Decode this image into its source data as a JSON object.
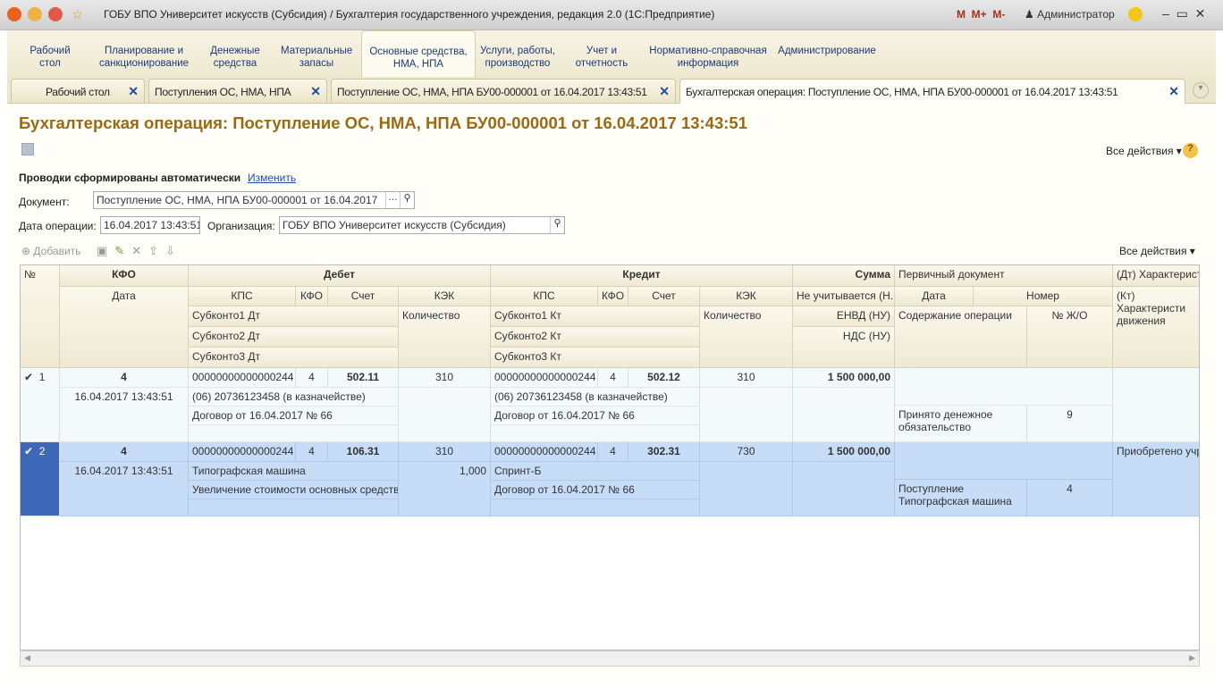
{
  "window": {
    "title": "ГОБУ ВПО Университет искусств (Субсидия) / Бухгалтерия государственного учреждения, редакция 2.0  (1С:Предприятие)",
    "user": "Администратор",
    "memory_buttons": [
      "M",
      "M+",
      "M-"
    ]
  },
  "sections": [
    "Рабочий стол",
    "Планирование и санкционирование",
    "Денежные средства",
    "Материальные запасы",
    "Основные средства, НМА, НПА",
    "Услуги, работы, производство",
    "Учет и отчетность",
    "Нормативно-справочная информация",
    "Администрирование"
  ],
  "active_section": "Основные средства, НМА, НПА",
  "tabs": [
    "Рабочий стол",
    "Поступления ОС, НМА, НПА",
    "Поступление ОС, НМА, НПА БУ00-000001 от 16.04.2017 13:43:51",
    "Бухгалтерская операция: Поступление ОС, НМА, НПА БУ00-000001 от 16.04.2017 13:43:51"
  ],
  "page": {
    "title": "Бухгалтерская операция: Поступление ОС, НМА, НПА БУ00-000001 от 16.04.2017 13:43:51",
    "all_actions": "Все действия ▾",
    "help": "?",
    "auto_label": "Проводки сформированы автоматически",
    "change_link": "Изменить",
    "doc_label": "Документ:",
    "doc_value": "Поступление ОС, НМА, НПА БУ00-000001 от 16.04.2017 1",
    "date_label": "Дата операции:",
    "date_value": "16.04.2017 13:43:51",
    "org_label": "Организация:",
    "org_value": "ГОБУ ВПО Университет искусств (Субсидия)",
    "add": "Добавить",
    "all_actions2": "Все действия ▾"
  },
  "grid": {
    "headers": {
      "num": "№",
      "kfo": "КФО",
      "date": "Дата",
      "debit": "Дебет",
      "credit": "Кредит",
      "sum": "Сумма",
      "kps": "КПС",
      "kfo2": "КФО",
      "account": "Счет",
      "kek": "КЭК",
      "not_counted": "Не учитывается (Н...",
      "envd": "ЕНВД (НУ)",
      "nds": "НДС (НУ)",
      "primary": "Первичный документ",
      "pdate": "Дата",
      "pnum": "Номер",
      "content": "Содержание операции",
      "jo": "№ Ж/О",
      "dt_char": "(Дт) Характеристи",
      "kt_char": "(Кт) Характеристи движения",
      "sub1dt": "Субконто1 Дт",
      "sub2dt": "Субконто2 Дт",
      "sub3dt": "Субконто3 Дт",
      "qty": "Количество",
      "sub1kt": "Субконто1 Кт",
      "sub2kt": "Субконто2 Кт",
      "sub3kt": "Субконто3 Кт",
      "qty2": "Количество"
    },
    "rows": [
      {
        "check": "✔",
        "n": "1",
        "kfo": "4",
        "date": "16.04.2017 13:43:51",
        "dt_kps": "00000000000000244",
        "dt_kfo": "4",
        "dt_acc": "502.11",
        "dt_kek": "310",
        "dt_s1": "(06) 20736123458 (в казначействе)",
        "dt_qty": "",
        "dt_s2": "Договор от 16.04.2017 № 66",
        "kt_kps": "00000000000000244",
        "kt_kfo": "4",
        "kt_acc": "502.12",
        "kt_kek": "310",
        "kt_s1": "(06) 20736123458 (в казначействе)",
        "kt_s2": "Договор от 16.04.2017 № 66",
        "sum": "1 500 000,00",
        "content": "Принято денежное обязательство",
        "jo": "9",
        "char": ""
      },
      {
        "check": "✔",
        "n": "2",
        "kfo": "4",
        "date": "16.04.2017 13:43:51",
        "dt_kps": "00000000000000244",
        "dt_kfo": "4",
        "dt_acc": "106.31",
        "dt_kek": "310",
        "dt_s1": "Типографская машина",
        "dt_qty": "1,000",
        "dt_s2": "Увеличение стоимости основных средств",
        "kt_kps": "00000000000000244",
        "kt_kfo": "4",
        "kt_acc": "302.31",
        "kt_kek": "730",
        "kt_s1": "Спринт-Б",
        "kt_s2": "Договор от 16.04.2017 № 66",
        "sum": "1 500 000,00",
        "content": "Поступление Типографская машина",
        "jo": "4",
        "char": "Приобретено учре:"
      }
    ]
  }
}
